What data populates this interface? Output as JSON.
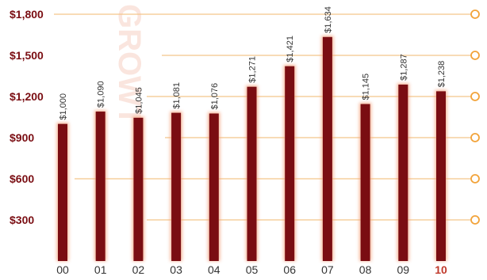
{
  "colors": {
    "bar": "#7a0d12",
    "bar_glow": "#f4a07a",
    "axis_text": "#7a0d12",
    "category_text": "#333333",
    "highlight_text": "#c0392b",
    "gridline": "#f4c58a",
    "marker": "#f2a33a",
    "watermark": "#f6d0c4"
  },
  "watermark_text": "GROWT",
  "chart_data": {
    "type": "bar",
    "title": "",
    "xlabel": "",
    "ylabel": "",
    "categories": [
      "00",
      "01",
      "02",
      "03",
      "04",
      "05",
      "06",
      "07",
      "08",
      "09",
      "10"
    ],
    "values": [
      1000,
      1090,
      1045,
      1081,
      1076,
      1271,
      1421,
      1634,
      1145,
      1287,
      1238
    ],
    "data_labels": [
      "$1,000",
      "$1,090",
      "$1,045",
      "$1,081",
      "$1,076",
      "$1,271",
      "$1,421",
      "$1,634",
      "$1,145",
      "$1,287",
      "$1,238"
    ],
    "highlighted_category": "10",
    "yticks": [
      300,
      600,
      900,
      1200,
      1500,
      1800
    ],
    "ytick_labels": [
      "$300",
      "$600",
      "$900",
      "$1,200",
      "$1,500",
      "$1,800"
    ],
    "ylim": [
      0,
      1800
    ],
    "grid": true,
    "legend": "none"
  }
}
